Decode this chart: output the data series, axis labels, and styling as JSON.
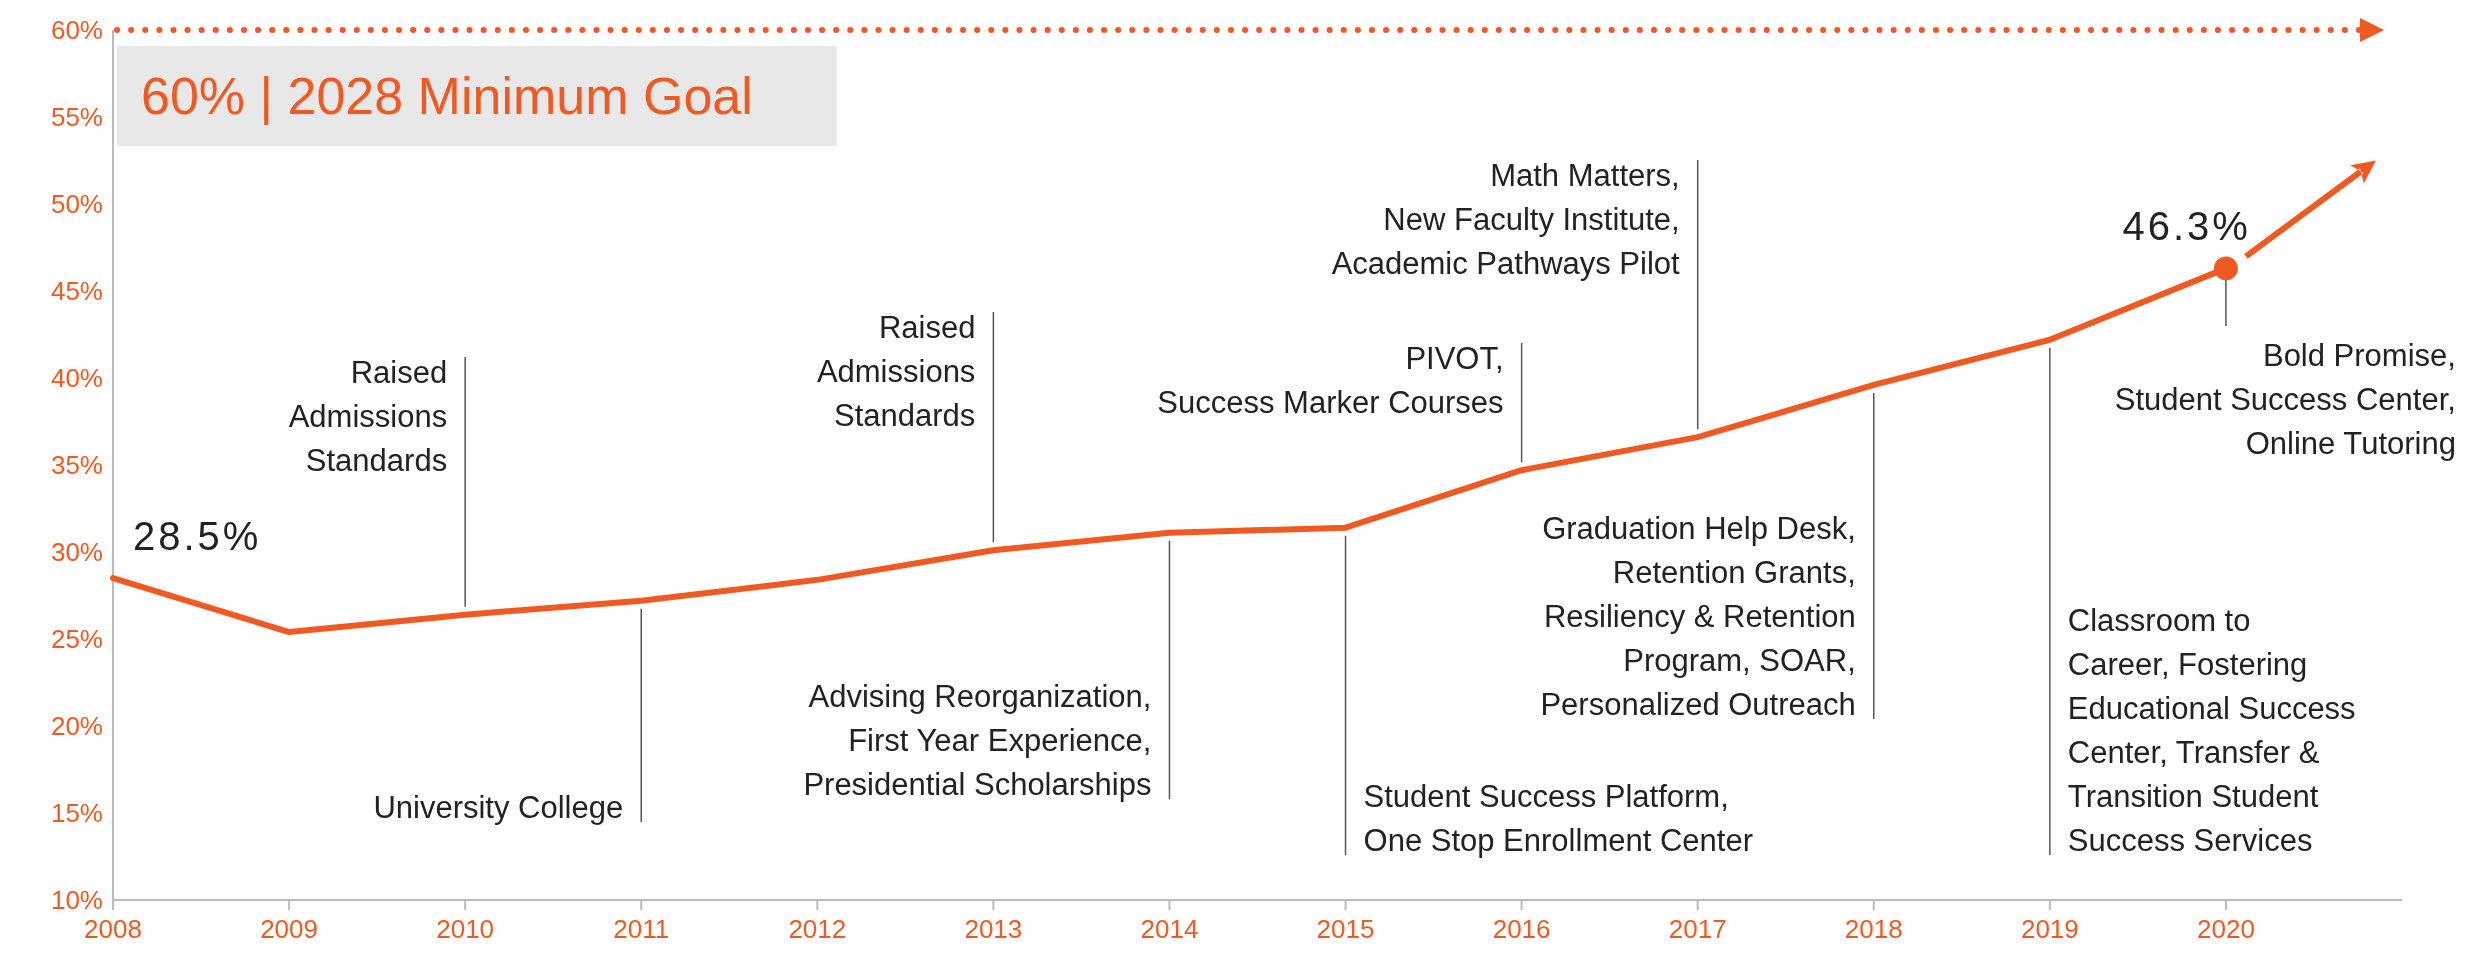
{
  "chart_data": {
    "type": "line",
    "xlim": [
      2008,
      2021
    ],
    "xticks": [
      2008,
      2009,
      2010,
      2011,
      2012,
      2013,
      2014,
      2015,
      2016,
      2017,
      2018,
      2019,
      2020
    ],
    "ylim": [
      10,
      60
    ],
    "yticks": [
      {
        "value": 10,
        "label": "10%"
      },
      {
        "value": 15,
        "label": "15%"
      },
      {
        "value": 20,
        "label": "20%"
      },
      {
        "value": 25,
        "label": "25%"
      },
      {
        "value": 30,
        "label": "30%"
      },
      {
        "value": 35,
        "label": "35%"
      },
      {
        "value": 40,
        "label": "40%"
      },
      {
        "value": 45,
        "label": "45%"
      },
      {
        "value": 50,
        "label": "50%"
      },
      {
        "value": 55,
        "label": "55%"
      },
      {
        "value": 60,
        "label": "60%"
      }
    ],
    "series": [
      {
        "color": "#f05a22",
        "line_style": "solid",
        "x": [
          2008,
          2009,
          2010,
          2011,
          2012,
          2013,
          2014,
          2015,
          2016,
          2017,
          2018,
          2019,
          2020
        ],
        "values": [
          28.5,
          25.4,
          26.4,
          27.2,
          28.4,
          30.1,
          31.1,
          31.4,
          34.7,
          36.6,
          39.6,
          42.2,
          46.3
        ],
        "value_labels": [
          "28.5%",
          null,
          null,
          null,
          null,
          null,
          null,
          null,
          null,
          null,
          null,
          null,
          "46.3%"
        ]
      },
      {
        "type": "scatter",
        "color": "#f05a22",
        "marker": "circle",
        "x": [
          2020
        ],
        "values": [
          46.3
        ]
      }
    ],
    "ref_lines": [
      {
        "axis": "y",
        "value": 60,
        "label": "60% | 2028 Minimum Goal",
        "color": "#f05a22",
        "line_style": "dotted"
      }
    ],
    "annotations": [
      {
        "text": "Raised\nAdmissions\nStandards",
        "x": 2010,
        "y": 26.4
      },
      {
        "text": "University College",
        "x": 2011,
        "y": 27.2
      },
      {
        "text": "Raised\nAdmissions\nStandards",
        "x": 2013,
        "y": 30.1
      },
      {
        "text": "Advising Reorganization,\nFirst Year Experience,\nPresidential Scholarships",
        "x": 2014,
        "y": 31.1
      },
      {
        "text": "Student Success Platform,\nOne Stop Enrollment Center",
        "x": 2015,
        "y": 31.4
      },
      {
        "text": "PIVOT,\nSuccess Marker Courses",
        "x": 2016,
        "y": 34.7
      },
      {
        "text": "Math Matters,\nNew Faculty Institute,\nAcademic Pathways Pilot",
        "x": 2017,
        "y": 36.6
      },
      {
        "text": "Graduation Help Desk,\nRetention Grants,\nResiliency & Retention\nProgram, SOAR,\nPersonalized Outreach",
        "x": 2018,
        "y": 39.6
      },
      {
        "text": "Classroom to\nCareer, Fostering\nEducational Success\nCenter, Transfer &\nTransition Student\nSuccess Services",
        "x": 2019,
        "y": 42.2
      },
      {
        "text": "Bold Promise,\nStudent Success Center,\nOnline Tutoring",
        "x": 2020,
        "y": 46.3
      }
    ]
  }
}
